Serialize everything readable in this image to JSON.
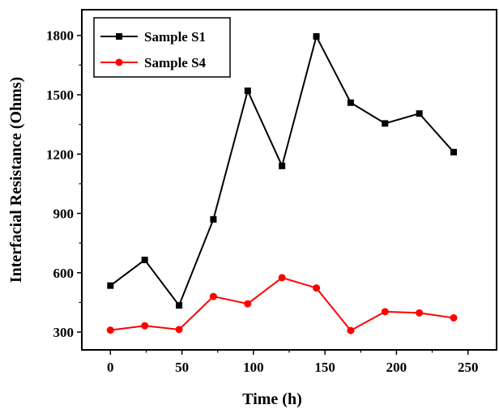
{
  "chart_data": {
    "type": "line",
    "xlabel": "Time (h)",
    "ylabel": "Interfacial Resistance (Ohms)",
    "xlim": [
      -20,
      270
    ],
    "ylim": [
      210,
      1930
    ],
    "xticks": [
      0,
      50,
      100,
      150,
      200,
      250
    ],
    "yticks": [
      300,
      600,
      900,
      1200,
      1500,
      1800
    ],
    "grid": false,
    "legend": "top-left",
    "series": [
      {
        "name": "Sample S1",
        "color": "#000000",
        "marker": "square",
        "x": [
          0,
          24,
          48,
          72,
          96,
          120,
          144,
          168,
          192,
          216,
          240
        ],
        "y": [
          535,
          665,
          435,
          870,
          1520,
          1140,
          1795,
          1460,
          1355,
          1405,
          1210
        ]
      },
      {
        "name": "Sample S4",
        "color": "#ff0000",
        "marker": "circle",
        "x": [
          0,
          24,
          48,
          72,
          96,
          120,
          144,
          168,
          192,
          216,
          240
        ],
        "y": [
          310,
          332,
          313,
          480,
          443,
          575,
          523,
          308,
          403,
          397,
          372
        ]
      }
    ]
  }
}
